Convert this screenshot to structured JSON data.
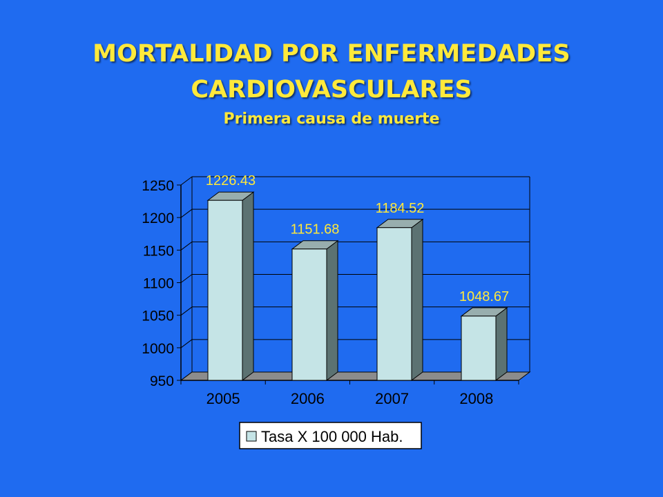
{
  "colors": {
    "background": "#1f6bf0",
    "title": "#ffe93b",
    "data_label": "#ffe93b",
    "bar_front": "#c5e4e6",
    "bar_side": "#5c7272",
    "bar_top": "#98aeae",
    "floor": "#8c8c8c",
    "axis": "#000000"
  },
  "slide": {
    "title_line1": "MORTALIDAD POR ENFERMEDADES",
    "title_line2": "CARDIOVASCULARES",
    "subtitle": "Primera causa de muerte"
  },
  "chart_data": {
    "type": "bar",
    "categories": [
      "2005",
      "2006",
      "2007",
      "2008"
    ],
    "series": [
      {
        "name": "Tasa X 100 000 Hab.",
        "values": [
          1226.43,
          1151.68,
          1184.52,
          1048.67
        ]
      }
    ],
    "data_labels": [
      "1226.43",
      "1151.68",
      "1184.52",
      "1048.67"
    ],
    "y_ticks": [
      950,
      1000,
      1050,
      1100,
      1150,
      1200,
      1250
    ],
    "ylim": [
      950,
      1250
    ],
    "grid": true,
    "legend_position": "bottom",
    "style": "3d-column"
  }
}
